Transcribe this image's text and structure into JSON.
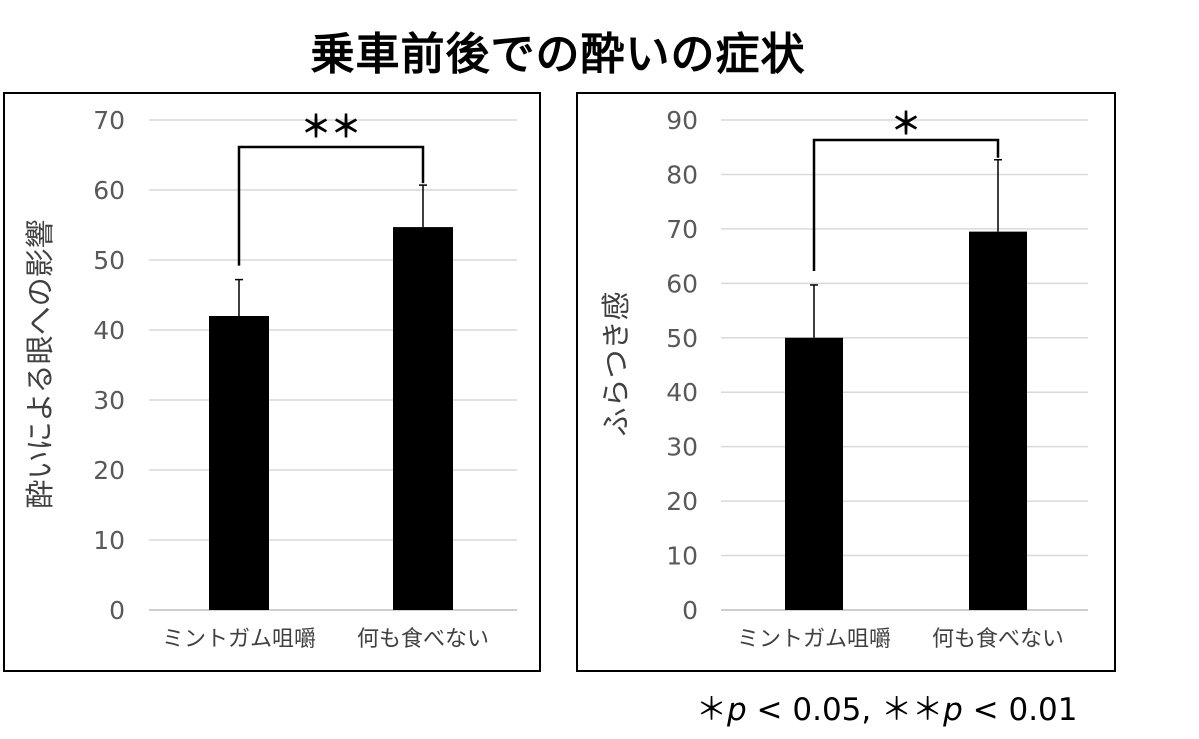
{
  "title": "乗車前後での酔いの症状",
  "footnote": {
    "star1": "＊",
    "p1": "p",
    "cmp1": " < 0.05, ",
    "star2": "＊＊",
    "p2": "p",
    "cmp2": " < 0.01"
  },
  "chart_data": [
    {
      "type": "bar",
      "title": "",
      "xlabel": "",
      "ylabel": "酔いによる眼への影響",
      "categories": [
        "ミントガム咀嚼",
        "何も食べない"
      ],
      "values": [
        42,
        54.7
      ],
      "error_bars": [
        5.2,
        6
      ],
      "ylim": [
        0,
        70
      ],
      "ytick_step": 10,
      "grid": true,
      "bar_color": "#000000",
      "grid_color": "#d9d9d9",
      "significance": "＊＊"
    },
    {
      "type": "bar",
      "title": "",
      "xlabel": "",
      "ylabel": "ふらつき感",
      "categories": [
        "ミントガム咀嚼",
        "何も食べない"
      ],
      "values": [
        50,
        69.5
      ],
      "error_bars": [
        9.7,
        13.2
      ],
      "ylim": [
        0,
        90
      ],
      "ytick_step": 10,
      "grid": true,
      "bar_color": "#000000",
      "grid_color": "#d9d9d9",
      "significance": "＊"
    }
  ]
}
